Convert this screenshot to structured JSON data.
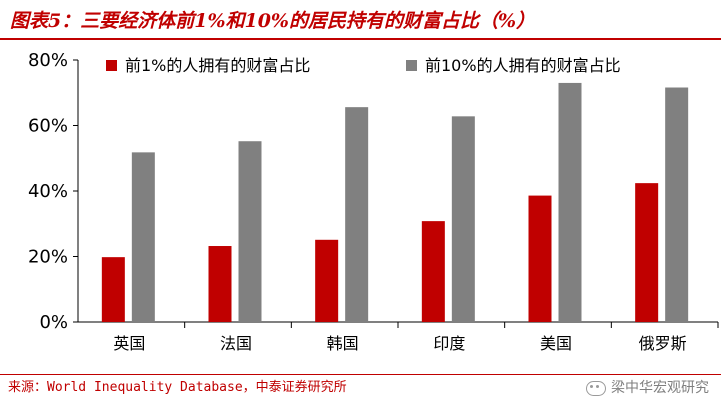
{
  "figure": {
    "title": "图表5：三要经济体前1%和10%的居民持有的财富占比（%）",
    "source": "来源：World Inequality Database，中泰证券研究所",
    "watermark": "梁中华宏观研究"
  },
  "chart_data": {
    "type": "bar",
    "categories": [
      "英国",
      "法国",
      "韩国",
      "印度",
      "美国",
      "俄罗斯"
    ],
    "series": [
      {
        "name": "前1%的人拥有的财富占比",
        "color": "#c00000",
        "values": [
          19.8,
          23.2,
          25.1,
          30.8,
          38.6,
          42.4
        ]
      },
      {
        "name": "前10%的人拥有的财富占比",
        "color": "#808080",
        "values": [
          51.8,
          55.2,
          65.6,
          62.8,
          73.0,
          71.6
        ]
      }
    ],
    "ylim": [
      0,
      80
    ],
    "yticks": [
      0,
      20,
      40,
      60,
      80
    ],
    "ytick_format": "%",
    "title": "",
    "xlabel": "",
    "ylabel": "",
    "legend": "top",
    "grid": false
  }
}
